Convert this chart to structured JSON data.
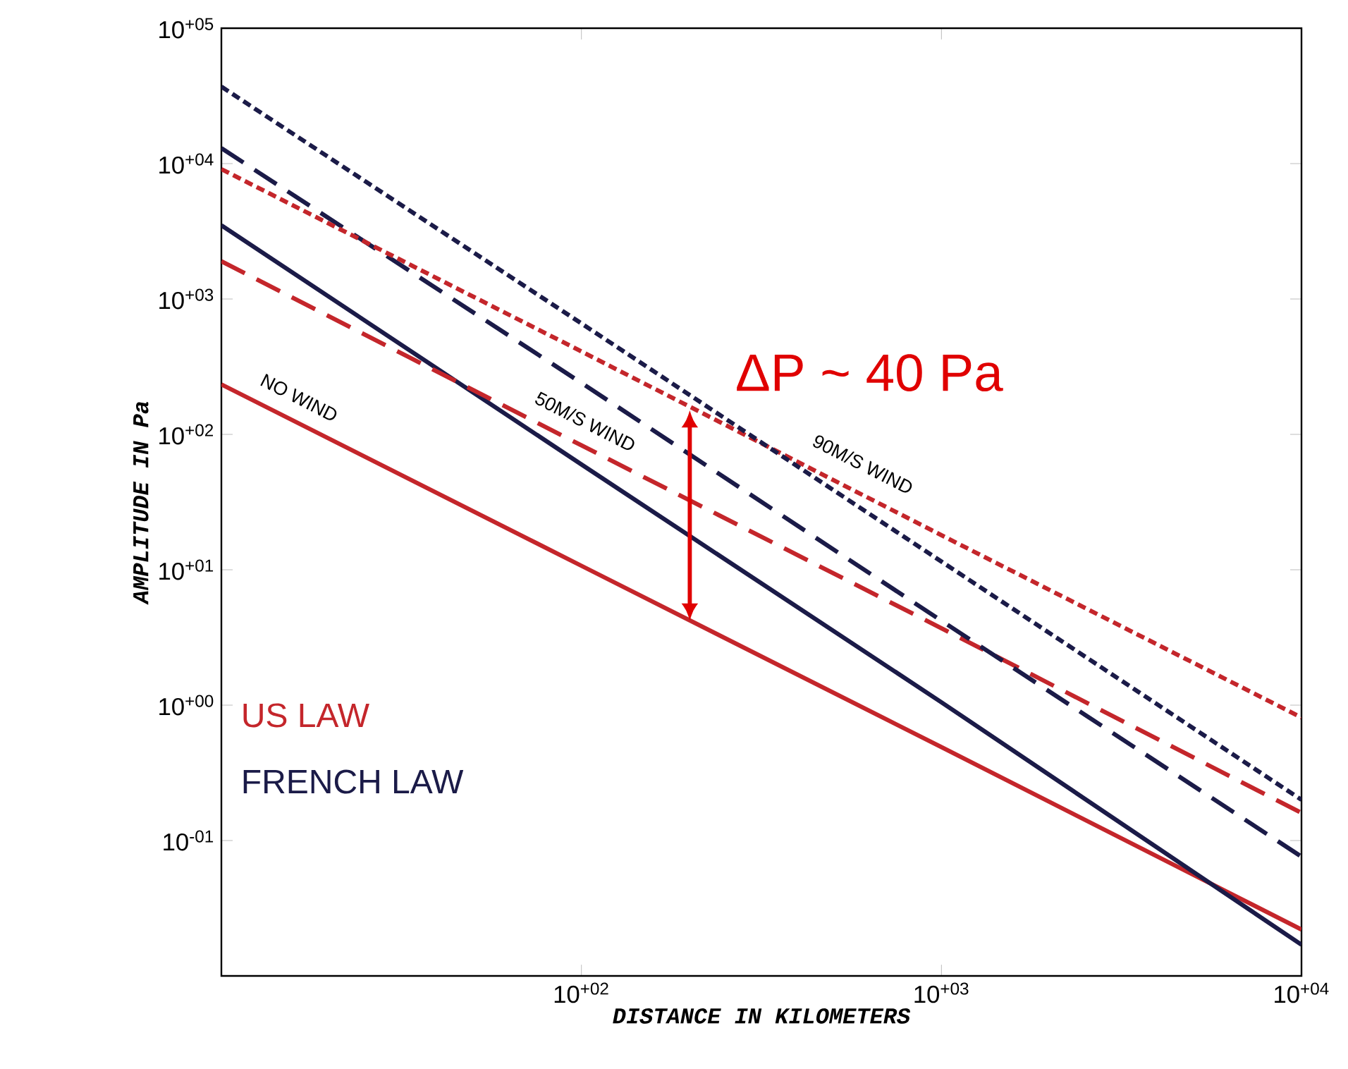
{
  "chart_data": {
    "type": "line",
    "xlabel": "DISTANCE IN KILOMETERS",
    "ylabel": "AMPLITUDE IN Pa",
    "log": "xy",
    "xlim": [
      10,
      10000
    ],
    "ylim": [
      0.01,
      100000
    ],
    "xticks": [
      {
        "value": 100,
        "label": "10$^{+02}$"
      },
      {
        "value": 1000,
        "label": "10$^{+03}$"
      },
      {
        "value": 10000,
        "label": "10$^{+04}$"
      }
    ],
    "yticks": [
      {
        "value": 0.1,
        "label": "10$^{-01}$"
      },
      {
        "value": 1,
        "label": "10$^{+00}$"
      },
      {
        "value": 10,
        "label": "10$^{+01}$"
      },
      {
        "value": 100,
        "label": "10$^{+02}$"
      },
      {
        "value": 1000,
        "label": "10$^{+03}$"
      },
      {
        "value": 10000,
        "label": "10$^{+04}$"
      },
      {
        "value": 100000,
        "label": "10$^{+05}$"
      }
    ],
    "x": [
      10,
      100,
      1000,
      10000
    ],
    "series": [
      {
        "name": "US LAW",
        "color": "#c4262b",
        "line_style": "solid",
        "values": [
          234,
          10.7,
          0.49,
          0.022
        ]
      },
      {
        "name": "FRENCH LAW",
        "color": "#1b1b48",
        "line_style": "solid",
        "values": [
          3500,
          60,
          1.05,
          0.017
        ]
      },
      {
        "color": "#c4262b",
        "line_style": "dashed",
        "values": [
          1900,
          83,
          3.7,
          0.16
        ]
      },
      {
        "color": "#1b1b48",
        "line_style": "dashed",
        "values": [
          13000,
          240,
          4.2,
          0.076
        ]
      },
      {
        "color": "#c4262b",
        "line_style": "dotted",
        "values": [
          9100,
          410,
          18,
          0.81
        ]
      },
      {
        "color": "#1b1b48",
        "line_style": "dotted",
        "values": [
          37000,
          660,
          11.5,
          0.2
        ]
      }
    ],
    "annotations": [
      "NO WIND",
      "50M/S WIND",
      "90M/S WIND",
      {
        "text": "ΔP  ~ 40 Pa",
        "x": 200,
        "y": 150
      }
    ]
  }
}
